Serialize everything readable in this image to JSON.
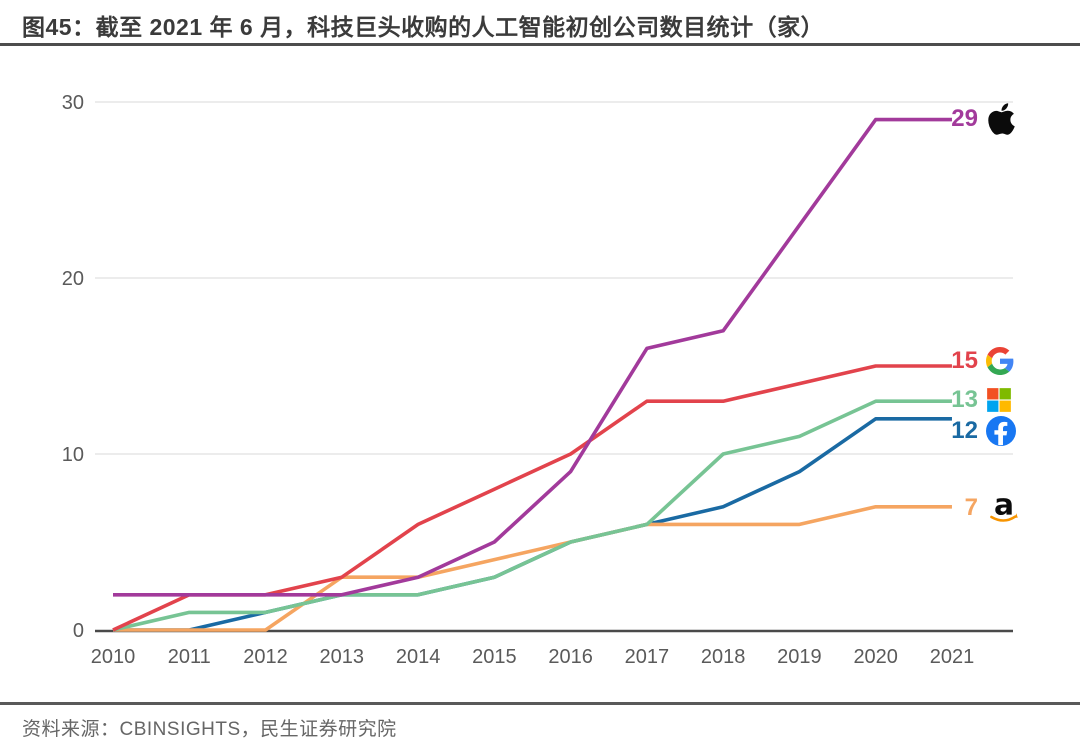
{
  "header": {
    "title": "图45：截至 2021 年 6 月，科技巨头收购的人工智能初创公司数目统计（家）"
  },
  "footer": {
    "source": "资料来源：CBINSIGHTS，民生证券研究院"
  },
  "chart_data": {
    "type": "line",
    "title": "截至 2021 年 6 月，科技巨头收购的人工智能初创公司数目统计（家）",
    "x": [
      2010,
      2011,
      2012,
      2013,
      2014,
      2015,
      2016,
      2017,
      2018,
      2019,
      2020,
      2021
    ],
    "xlabel": "",
    "ylabel": "",
    "ylim": [
      0,
      30
    ],
    "yticks": [
      0,
      10,
      20,
      30
    ],
    "grid": "horizontal-light",
    "legend_position": "right of line ends (count value + company logo)",
    "colors": {
      "axis": "#4a4a4a",
      "gridline": "#ececec",
      "tick_label": "#5a5a5a"
    },
    "series": [
      {
        "name": "Apple",
        "icon": "apple-logo-icon",
        "color": "#a23a9b",
        "end_label": "29",
        "values": [
          2,
          2,
          2,
          2,
          3,
          5,
          9,
          16,
          17,
          23,
          29,
          29
        ]
      },
      {
        "name": "Google",
        "icon": "google-logo-icon",
        "color": "#e2434c",
        "end_label": "15",
        "values": [
          0,
          2,
          2,
          3,
          6,
          8,
          10,
          13,
          13,
          14,
          15,
          15
        ]
      },
      {
        "name": "Microsoft",
        "icon": "microsoft-logo-icon",
        "color": "#77c494",
        "end_label": "13",
        "values": [
          0,
          1,
          1,
          2,
          2,
          3,
          5,
          6,
          10,
          11,
          13,
          13
        ]
      },
      {
        "name": "Facebook",
        "icon": "facebook-logo-icon",
        "color": "#1a6aa3",
        "end_label": "12",
        "values": [
          0,
          0,
          1,
          2,
          2,
          3,
          5,
          6,
          7,
          9,
          12,
          12
        ]
      },
      {
        "name": "Amazon",
        "icon": "amazon-logo-icon",
        "color": "#f5a561",
        "end_label": "7",
        "values": [
          0,
          0,
          0,
          3,
          3,
          4,
          5,
          6,
          6,
          6,
          7,
          7
        ]
      }
    ]
  }
}
